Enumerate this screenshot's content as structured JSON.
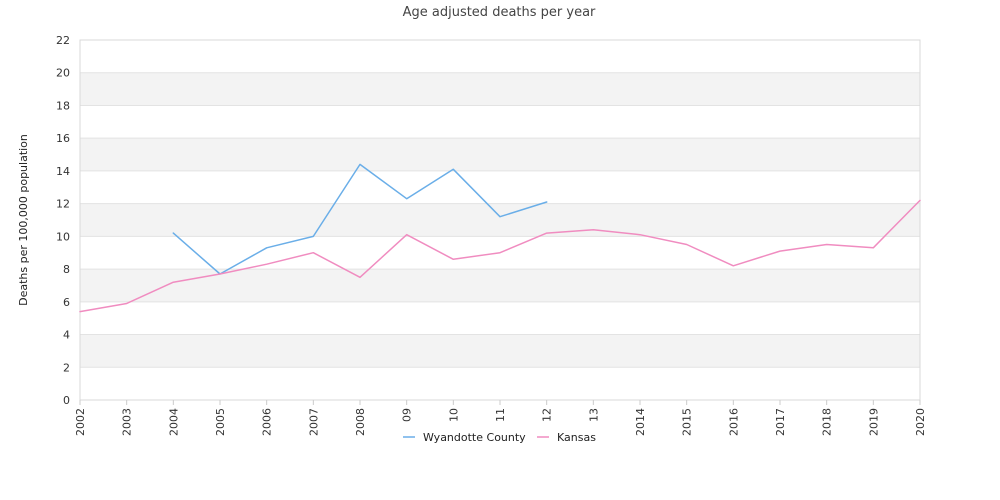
{
  "chart_data": {
    "type": "line",
    "title": "Age adjusted deaths per year",
    "xlabel": "",
    "ylabel": "Deaths per 100,000 population",
    "categories": [
      "2002",
      "2003",
      "2004",
      "2005",
      "2006",
      "2007",
      "2008",
      "09",
      "10",
      "11",
      "12",
      "13",
      "2014",
      "2015",
      "2016",
      "2017",
      "2018",
      "2019",
      "2020"
    ],
    "yticks": [
      "0",
      "2",
      "4",
      "6",
      "8",
      "10",
      "12",
      "14",
      "16",
      "18",
      "20",
      "22"
    ],
    "ylim": [
      0,
      22
    ],
    "grid": true,
    "legend_position": "bottom",
    "series": [
      {
        "name": "Wyandotte County",
        "color": "#6aaee8",
        "values": [
          null,
          null,
          10.2,
          7.7,
          9.3,
          10.0,
          14.4,
          12.3,
          14.1,
          11.2,
          12.1,
          null,
          null,
          null,
          null,
          null,
          null,
          null,
          null
        ]
      },
      {
        "name": "Kansas",
        "color": "#f08cc0",
        "values": [
          5.4,
          5.9,
          7.2,
          7.7,
          8.3,
          9.0,
          7.5,
          10.1,
          8.6,
          9.0,
          10.2,
          10.4,
          10.1,
          9.5,
          8.2,
          9.1,
          9.5,
          9.3,
          12.2
        ]
      }
    ]
  }
}
